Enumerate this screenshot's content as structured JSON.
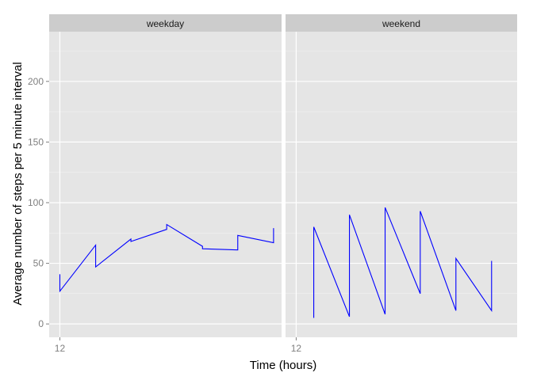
{
  "chart_data": {
    "type": "line",
    "xlabel": "Time (hours)",
    "ylabel": "Average number of steps per 5 minute interval",
    "ylim": [
      -11,
      241
    ],
    "yticks": [
      0,
      50,
      100,
      150,
      200
    ],
    "xlim": [
      11.8,
      16.15
    ],
    "xticks": [
      12
    ],
    "xtick_labels": [
      "12"
    ],
    "grid": true,
    "line_color": "#0000FF",
    "panel_bg": "#E5E5E5",
    "strip_bg": "#CCCCCC",
    "panels": [
      {
        "name": "weekday",
        "x": [
          12.0,
          12.0,
          12.67,
          12.67,
          13.33,
          13.33,
          14.0,
          14.0,
          14.67,
          14.67,
          15.33,
          15.33,
          16.0,
          16.0
        ],
        "y": [
          41,
          27,
          65,
          47,
          70,
          68,
          78,
          82,
          64,
          62,
          61,
          73,
          67,
          79
        ]
      },
      {
        "name": "weekend",
        "x": [
          12.33,
          12.33,
          13.0,
          13.0,
          13.67,
          13.67,
          14.33,
          14.33,
          15.0,
          15.0,
          15.67,
          15.67
        ],
        "y": [
          5,
          80,
          6,
          90,
          8,
          96,
          25,
          93,
          11,
          54,
          11,
          52
        ]
      }
    ]
  }
}
